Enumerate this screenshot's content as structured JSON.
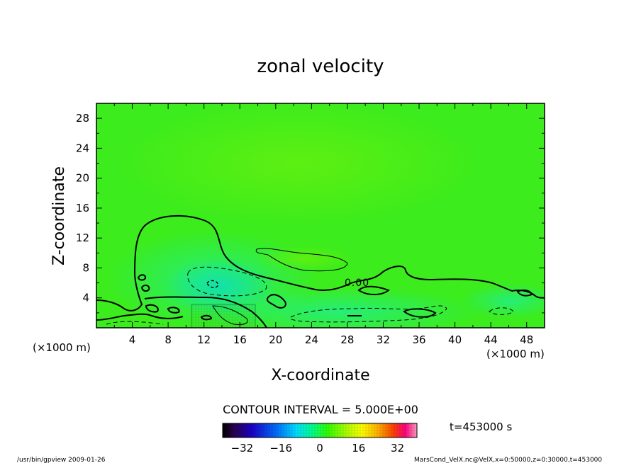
{
  "chart_data": {
    "type": "heatmap",
    "title": "zonal velocity",
    "xlabel": "X-coordinate",
    "ylabel": "Z-coordinate",
    "x_unit": "(×1000 m)",
    "y_unit": "(×1000 m)",
    "xlim": [
      0,
      50
    ],
    "ylim": [
      0,
      30
    ],
    "xticks": [
      4,
      8,
      12,
      16,
      20,
      24,
      28,
      32,
      36,
      40,
      44,
      48
    ],
    "yticks": [
      4,
      8,
      12,
      16,
      20,
      24,
      28
    ],
    "contour_interval_label": "CONTOUR INTERVAL = 5.000E+00",
    "contour_label": "0.00",
    "time_label": "t=453000 s",
    "colorbar": {
      "range": [
        -40,
        40
      ],
      "ticks": [
        -32,
        -16,
        0,
        16,
        32
      ],
      "colors": [
        "#000000",
        "#2a0050",
        "#1a00c8",
        "#0070ff",
        "#00e0ff",
        "#00ff90",
        "#30ff00",
        "#b0ff00",
        "#ffff00",
        "#ffb000",
        "#ff4000",
        "#ff0080",
        "#ffa0c0"
      ]
    },
    "footer_left": "/usr/bin/gpview   2009-01-26",
    "footer_right": "MarsCond_VelX.nc@VelX,x=0:50000,z=0:30000,t=453000"
  }
}
